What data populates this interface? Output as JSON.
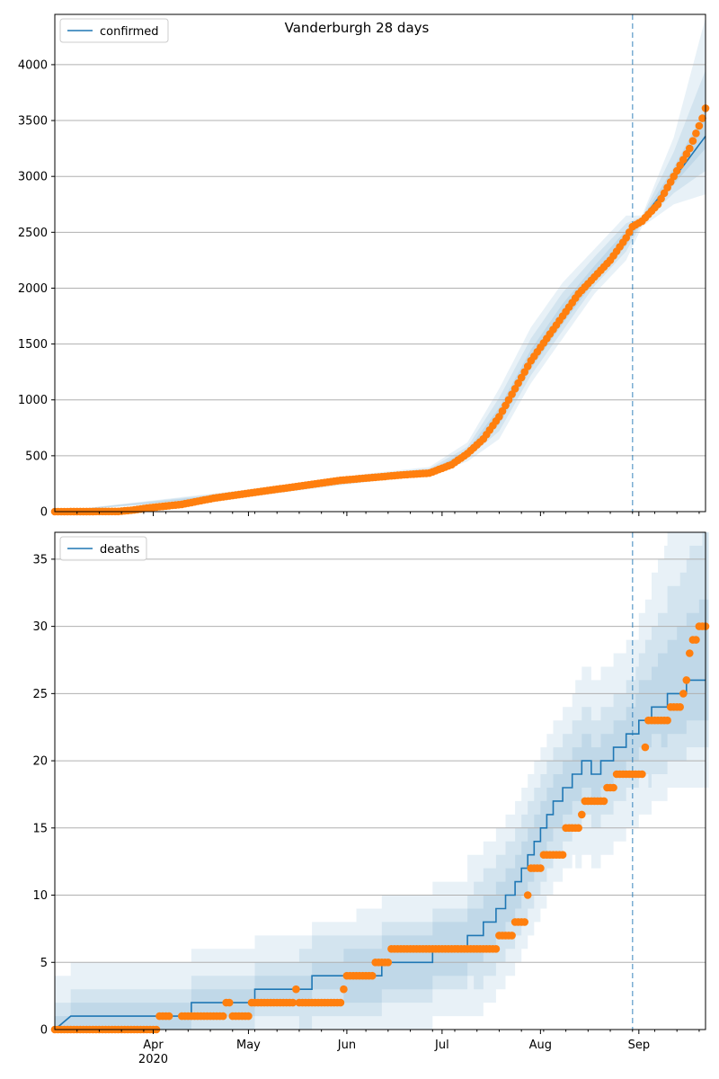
{
  "figure": {
    "title": "Vanderburgh 28 days",
    "x_tick_labels": [
      {
        "label": "Apr",
        "sub": "2020",
        "day": 31
      },
      {
        "label": "May",
        "sub": "",
        "day": 61
      },
      {
        "label": "Jun",
        "sub": "",
        "day": 92
      },
      {
        "label": "Jul",
        "sub": "",
        "day": 122
      },
      {
        "label": "Aug",
        "sub": "",
        "day": 153
      },
      {
        "label": "Sep",
        "sub": "",
        "day": 184
      }
    ],
    "forecast_start_day": 182,
    "colors": {
      "model": "#1f77b4",
      "observed": "#ff7f0e",
      "grid": "#b0b0b0"
    }
  },
  "chart_data": [
    {
      "type": "line",
      "series_name": "confirmed",
      "x_unit": "days since 2020-03-01",
      "xlim": [
        0,
        205
      ],
      "ylim": [
        0,
        4450
      ],
      "yticks": [
        0,
        500,
        1000,
        1500,
        2000,
        2500,
        3000,
        3500,
        4000
      ],
      "grid": "horizontal",
      "legend": "top-left",
      "observed_keypoints": [
        [
          0,
          0
        ],
        [
          20,
          2
        ],
        [
          25,
          15
        ],
        [
          30,
          35
        ],
        [
          40,
          65
        ],
        [
          50,
          120
        ],
        [
          60,
          160
        ],
        [
          70,
          200
        ],
        [
          80,
          240
        ],
        [
          90,
          280
        ],
        [
          100,
          305
        ],
        [
          110,
          330
        ],
        [
          118,
          345
        ],
        [
          125,
          420
        ],
        [
          130,
          520
        ],
        [
          135,
          650
        ],
        [
          140,
          850
        ],
        [
          145,
          1100
        ],
        [
          150,
          1350
        ],
        [
          155,
          1550
        ],
        [
          160,
          1750
        ],
        [
          165,
          1950
        ],
        [
          170,
          2100
        ],
        [
          175,
          2250
        ],
        [
          180,
          2450
        ],
        [
          182,
          2550
        ],
        [
          185,
          2600
        ],
        [
          190,
          2750
        ],
        [
          195,
          3000
        ],
        [
          200,
          3250
        ],
        [
          204,
          3520
        ],
        [
          205,
          3610
        ]
      ],
      "model_keypoints": [
        [
          0,
          0
        ],
        [
          20,
          2
        ],
        [
          25,
          15
        ],
        [
          30,
          35
        ],
        [
          40,
          65
        ],
        [
          50,
          120
        ],
        [
          60,
          160
        ],
        [
          70,
          200
        ],
        [
          80,
          240
        ],
        [
          90,
          280
        ],
        [
          100,
          305
        ],
        [
          110,
          330
        ],
        [
          118,
          345
        ],
        [
          125,
          420
        ],
        [
          130,
          520
        ],
        [
          135,
          650
        ],
        [
          140,
          850
        ],
        [
          145,
          1100
        ],
        [
          150,
          1350
        ],
        [
          155,
          1550
        ],
        [
          160,
          1750
        ],
        [
          165,
          1950
        ],
        [
          170,
          2100
        ],
        [
          175,
          2250
        ],
        [
          180,
          2450
        ],
        [
          182,
          2550
        ],
        [
          185,
          2620
        ],
        [
          190,
          2800
        ],
        [
          195,
          2980
        ],
        [
          200,
          3170
        ],
        [
          205,
          3360
        ]
      ],
      "bands": [
        {
          "lower": [
            [
              0,
              0
            ],
            [
              60,
              130
            ],
            [
              100,
              270
            ],
            [
              118,
              320
            ],
            [
              130,
              450
            ],
            [
              140,
              650
            ],
            [
              150,
              1150
            ],
            [
              160,
              1550
            ],
            [
              170,
              1950
            ],
            [
              180,
              2250
            ],
            [
              185,
              2550
            ],
            [
              195,
              2750
            ],
            [
              205,
              2840
            ]
          ],
          "upper": [
            [
              0,
              0
            ],
            [
              60,
              195
            ],
            [
              100,
              345
            ],
            [
              118,
              400
            ],
            [
              130,
              620
            ],
            [
              140,
              1100
            ],
            [
              150,
              1650
            ],
            [
              160,
              2050
            ],
            [
              170,
              2350
            ],
            [
              180,
              2650
            ],
            [
              185,
              2650
            ],
            [
              195,
              3350
            ],
            [
              205,
              4420
            ]
          ]
        },
        {
          "lower": [
            [
              0,
              0
            ],
            [
              60,
              140
            ],
            [
              100,
              280
            ],
            [
              118,
              330
            ],
            [
              130,
              480
            ],
            [
              140,
              720
            ],
            [
              150,
              1220
            ],
            [
              160,
              1620
            ],
            [
              170,
              2020
            ],
            [
              180,
              2330
            ],
            [
              185,
              2580
            ],
            [
              195,
              2850
            ],
            [
              205,
              3050
            ]
          ],
          "upper": [
            [
              0,
              0
            ],
            [
              60,
              185
            ],
            [
              100,
              335
            ],
            [
              118,
              385
            ],
            [
              130,
              580
            ],
            [
              140,
              1020
            ],
            [
              150,
              1550
            ],
            [
              160,
              1960
            ],
            [
              170,
              2280
            ],
            [
              180,
              2580
            ],
            [
              185,
              2640
            ],
            [
              195,
              3220
            ],
            [
              205,
              3950
            ]
          ]
        },
        {
          "lower": [
            [
              0,
              0
            ],
            [
              60,
              150
            ],
            [
              100,
              290
            ],
            [
              118,
              338
            ],
            [
              130,
              500
            ],
            [
              140,
              780
            ],
            [
              150,
              1280
            ],
            [
              160,
              1680
            ],
            [
              170,
              2060
            ],
            [
              180,
              2380
            ],
            [
              185,
              2600
            ],
            [
              195,
              2930
            ],
            [
              205,
              3250
            ]
          ],
          "upper": [
            [
              0,
              0
            ],
            [
              60,
              172
            ],
            [
              100,
              322
            ],
            [
              118,
              365
            ],
            [
              130,
              550
            ],
            [
              140,
              930
            ],
            [
              150,
              1450
            ],
            [
              160,
              1860
            ],
            [
              170,
              2200
            ],
            [
              180,
              2520
            ],
            [
              185,
              2630
            ],
            [
              195,
              3080
            ],
            [
              205,
              3600
            ]
          ]
        }
      ]
    },
    {
      "type": "line",
      "series_name": "deaths",
      "x_unit": "days since 2020-03-01",
      "xlim": [
        0,
        205
      ],
      "ylim": [
        0,
        37
      ],
      "yticks": [
        0,
        5,
        10,
        15,
        20,
        25,
        30,
        35
      ],
      "grid": "horizontal",
      "legend": "top-left",
      "step": true,
      "observed_keypoints": [
        [
          0,
          0
        ],
        [
          33,
          1
        ],
        [
          53,
          1
        ],
        [
          54,
          2
        ],
        [
          56,
          1
        ],
        [
          61,
          1
        ],
        [
          62,
          2
        ],
        [
          75,
          2
        ],
        [
          76,
          3
        ],
        [
          77,
          2
        ],
        [
          90,
          2
        ],
        [
          91,
          3
        ],
        [
          92,
          4
        ],
        [
          100,
          4
        ],
        [
          101,
          5
        ],
        [
          105,
          5
        ],
        [
          106,
          6
        ],
        [
          139,
          6
        ],
        [
          140,
          7
        ],
        [
          144,
          7
        ],
        [
          145,
          8
        ],
        [
          148,
          8
        ],
        [
          149,
          10
        ],
        [
          150,
          12
        ],
        [
          153,
          12
        ],
        [
          154,
          13
        ],
        [
          160,
          13
        ],
        [
          161,
          15
        ],
        [
          165,
          15
        ],
        [
          166,
          16
        ],
        [
          167,
          17
        ],
        [
          173,
          17
        ],
        [
          174,
          18
        ],
        [
          176,
          18
        ],
        [
          177,
          19
        ],
        [
          181,
          19
        ],
        [
          182,
          19
        ],
        [
          183,
          19
        ],
        [
          185,
          19
        ],
        [
          186,
          21
        ],
        [
          187,
          23
        ],
        [
          193,
          23
        ],
        [
          194,
          24
        ],
        [
          197,
          24
        ],
        [
          198,
          25
        ],
        [
          199,
          26
        ],
        [
          200,
          28
        ],
        [
          201,
          29
        ],
        [
          203,
          30
        ],
        [
          205,
          30
        ]
      ],
      "model_keypoints": [
        [
          0,
          0
        ],
        [
          5,
          1
        ],
        [
          43,
          1
        ],
        [
          43,
          2
        ],
        [
          63,
          2
        ],
        [
          63,
          3
        ],
        [
          81,
          3
        ],
        [
          81,
          4
        ],
        [
          103,
          4
        ],
        [
          103,
          5
        ],
        [
          119,
          5
        ],
        [
          119,
          6
        ],
        [
          130,
          6
        ],
        [
          130,
          7
        ],
        [
          135,
          7
        ],
        [
          135,
          8
        ],
        [
          139,
          8
        ],
        [
          139,
          9
        ],
        [
          142,
          9
        ],
        [
          142,
          10
        ],
        [
          145,
          10
        ],
        [
          145,
          11
        ],
        [
          147,
          11
        ],
        [
          147,
          12
        ],
        [
          149,
          12
        ],
        [
          149,
          13
        ],
        [
          151,
          13
        ],
        [
          151,
          14
        ],
        [
          153,
          14
        ],
        [
          153,
          15
        ],
        [
          155,
          15
        ],
        [
          155,
          16
        ],
        [
          157,
          16
        ],
        [
          157,
          17
        ],
        [
          160,
          17
        ],
        [
          160,
          18
        ],
        [
          163,
          18
        ],
        [
          163,
          19
        ],
        [
          166,
          19
        ],
        [
          166,
          20
        ],
        [
          169,
          20
        ],
        [
          169,
          19
        ],
        [
          172,
          19
        ],
        [
          172,
          20
        ],
        [
          176,
          20
        ],
        [
          176,
          21
        ],
        [
          180,
          21
        ],
        [
          180,
          22
        ],
        [
          184,
          22
        ],
        [
          184,
          23
        ],
        [
          188,
          23
        ],
        [
          188,
          24
        ],
        [
          193,
          24
        ],
        [
          193,
          25
        ],
        [
          199,
          25
        ],
        [
          199,
          26
        ],
        [
          205,
          26
        ]
      ]
    }
  ],
  "legend": {
    "top_label": "confirmed",
    "bottom_label": "deaths"
  }
}
